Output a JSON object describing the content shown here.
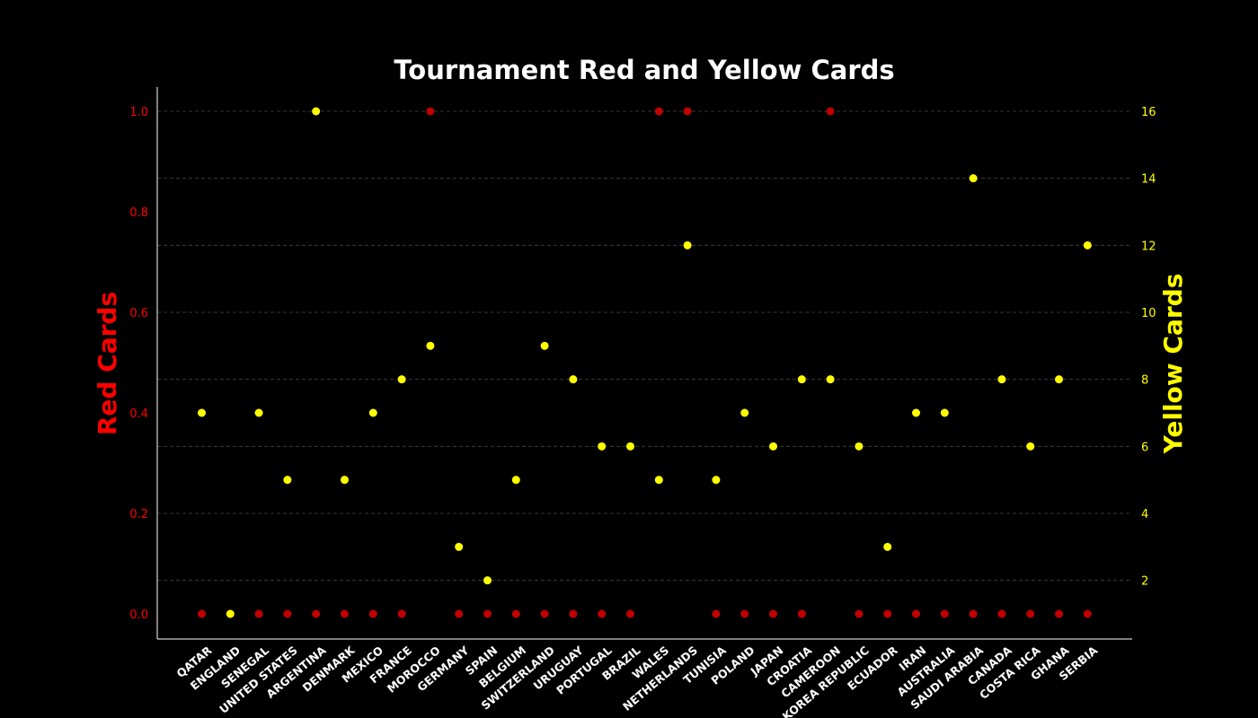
{
  "chart_data": {
    "type": "scatter",
    "title": "Tournament Red and Yellow Cards",
    "categories": [
      "QATAR",
      "ENGLAND",
      "SENEGAL",
      "UNITED STATES",
      "ARGENTINA",
      "DENMARK",
      "MEXICO",
      "FRANCE",
      "MOROCCO",
      "GERMANY",
      "SPAIN",
      "BELGIUM",
      "SWITZERLAND",
      "URUGUAY",
      "PORTUGAL",
      "BRAZIL",
      "WALES",
      "NETHERLANDS",
      "TUNISIA",
      "POLAND",
      "JAPAN",
      "CROATIA",
      "CAMEROON",
      "KOREA REPUBLIC",
      "ECUADOR",
      "IRAN",
      "AUSTRALIA",
      "SAUDI ARABIA",
      "CANADA",
      "COSTA RICA",
      "GHANA",
      "SERBIA"
    ],
    "series": [
      {
        "name": "Red Cards",
        "axis": "left",
        "color": "#c00000",
        "values": [
          0,
          0,
          0,
          0,
          0,
          0,
          0,
          0,
          1,
          0,
          0,
          0,
          0,
          0,
          0,
          0,
          1,
          1,
          0,
          0,
          0,
          0,
          1,
          0,
          0,
          0,
          0,
          0,
          0,
          0,
          0,
          0
        ]
      },
      {
        "name": "Yellow Cards",
        "axis": "right",
        "color": "#ffff00",
        "values": [
          7,
          1,
          7,
          5,
          16,
          5,
          7,
          8,
          9,
          3,
          2,
          5,
          9,
          8,
          6,
          6,
          5,
          12,
          5,
          7,
          6,
          8,
          8,
          6,
          3,
          7,
          7,
          14,
          8,
          6,
          8,
          12
        ]
      }
    ],
    "ylabel": "Red Cards",
    "y2label": "Yellow Cards",
    "ylim": [
      0,
      1
    ],
    "y2lim": [
      1,
      16
    ],
    "yticks": [
      "0.0",
      "0.2",
      "0.4",
      "0.6",
      "0.8",
      "1.0"
    ],
    "y2ticks": [
      "2",
      "4",
      "6",
      "8",
      "10",
      "12",
      "14",
      "16"
    ],
    "grid": true,
    "legend": "none"
  }
}
